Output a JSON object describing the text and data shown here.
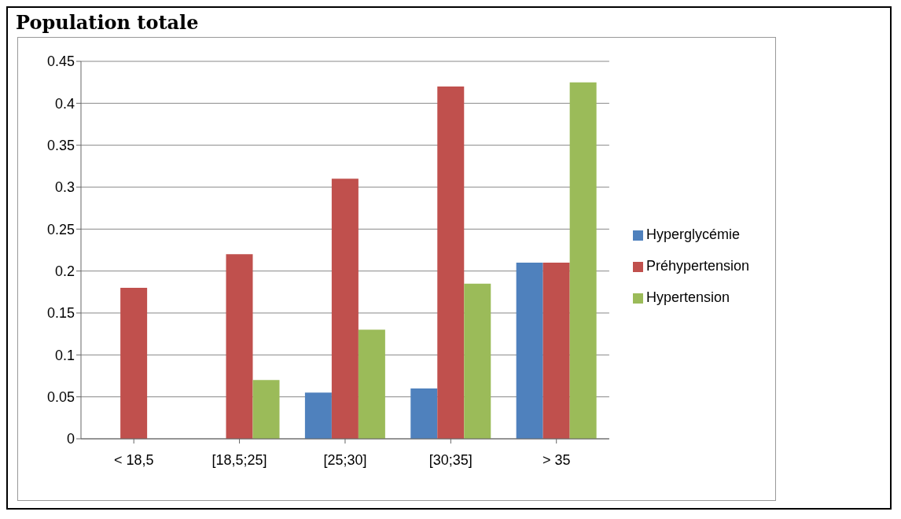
{
  "chart_data": {
    "type": "bar",
    "title": "Population totale",
    "categories": [
      "< 18,5",
      "[18,5;25]",
      "[25;30]",
      "[30;35]",
      "> 35"
    ],
    "series": [
      {
        "name": "Hyperglycémie",
        "color": "#4f81bd",
        "values": [
          0,
          0,
          0.055,
          0.06,
          0.21
        ]
      },
      {
        "name": "Préhypertension",
        "color": "#c0504d",
        "values": [
          0.18,
          0.22,
          0.31,
          0.42,
          0.21
        ]
      },
      {
        "name": "Hypertension",
        "color": "#9bbb59",
        "values": [
          0,
          0.07,
          0.13,
          0.185,
          0.425
        ]
      }
    ],
    "ylim": [
      0,
      0.45
    ],
    "yticks": [
      0,
      0.05,
      0.1,
      0.15,
      0.2,
      0.25,
      0.3,
      0.35,
      0.4,
      0.45
    ],
    "grid": "y",
    "legend": "right"
  }
}
